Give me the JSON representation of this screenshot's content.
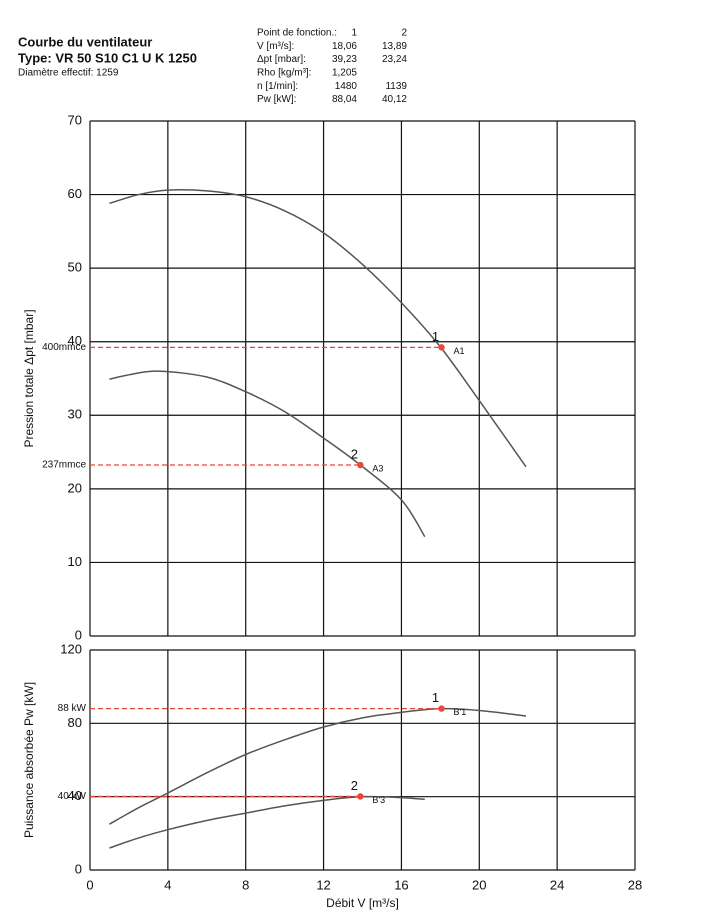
{
  "header": {
    "title": "Courbe du ventilateur",
    "type": "Type: VR 50 S10 C1 U K 1250",
    "diameter": "Diamètre effectif: 1259"
  },
  "table": {
    "rows": [
      [
        "Point de fonction.:",
        "1",
        "2"
      ],
      [
        "V [m³/s]:",
        "18,06",
        "13,89"
      ],
      [
        "Δpt [mbar]:",
        "39,23",
        "23,24"
      ],
      [
        "Rho [kg/m³]:",
        "1,205"
      ],
      [
        "n [1/min]:",
        "1480",
        "1139"
      ],
      [
        "Pw [kW]:",
        "88,04",
        "40,12"
      ]
    ]
  },
  "chart_data": [
    {
      "type": "line",
      "ylabel": "Pression totale Δpt [mbar]",
      "xlim": [
        0,
        28
      ],
      "xticks": [
        0,
        4,
        8,
        12,
        16,
        20,
        24,
        28
      ],
      "show_xtick_labels": false,
      "ylim": [
        0,
        70
      ],
      "yticks": [
        0,
        10,
        20,
        30,
        40,
        50,
        60,
        70
      ],
      "grid": true,
      "series": [
        {
          "color": "#555555",
          "x": [
            1,
            2.5,
            4,
            6,
            8,
            10,
            12,
            14,
            16,
            18,
            20,
            22.4
          ],
          "values": [
            58.8,
            60,
            60.6,
            60.5,
            59.7,
            57.8,
            54.8,
            50.5,
            45.3,
            39.3,
            32,
            23
          ]
        },
        {
          "color": "#555555",
          "x": [
            1,
            2,
            3.5,
            6,
            8,
            10,
            12,
            13.89,
            16,
            17.2
          ],
          "values": [
            34.9,
            35.5,
            36,
            35.2,
            33.2,
            30.5,
            26.9,
            23.24,
            18.5,
            13.5
          ]
        }
      ],
      "point_color": "#e8473a",
      "points": [
        {
          "x": 18.06,
          "y": 39.23,
          "label": "1",
          "tag": "A1",
          "level_label": "400mmce"
        },
        {
          "x": 13.89,
          "y": 23.24,
          "label": "2",
          "tag": "A3",
          "level_label": "237mmce"
        }
      ]
    },
    {
      "type": "line",
      "ylabel": "Puissance absorbée Pw [kW]",
      "xlabel": "Débit V [m³/s]",
      "xlim": [
        0,
        28
      ],
      "xticks": [
        0,
        4,
        8,
        12,
        16,
        20,
        24,
        28
      ],
      "show_xtick_labels": true,
      "ylim": [
        0,
        120
      ],
      "yticks": [
        0,
        40,
        80,
        120
      ],
      "grid": true,
      "series": [
        {
          "color": "#555555",
          "x": [
            1,
            2.5,
            4,
            6,
            8,
            10,
            12,
            14,
            16,
            18,
            20,
            22.4
          ],
          "values": [
            25,
            34,
            42,
            53,
            63,
            71,
            78,
            83,
            86,
            88,
            87,
            84
          ]
        },
        {
          "color": "#555555",
          "x": [
            1,
            2.5,
            4,
            6,
            8,
            10,
            12,
            14,
            16,
            17.2
          ],
          "values": [
            12,
            17.5,
            22,
            27,
            31,
            35,
            38,
            40,
            39.5,
            38.5
          ]
        }
      ],
      "point_color": "#e8473a",
      "points": [
        {
          "x": 18.06,
          "y": 88.04,
          "label": "1",
          "tag": "B'1",
          "level_label": "88 kW"
        },
        {
          "x": 13.89,
          "y": 40.12,
          "label": "2",
          "tag": "B'3",
          "level_label": "40 kW"
        }
      ]
    }
  ]
}
